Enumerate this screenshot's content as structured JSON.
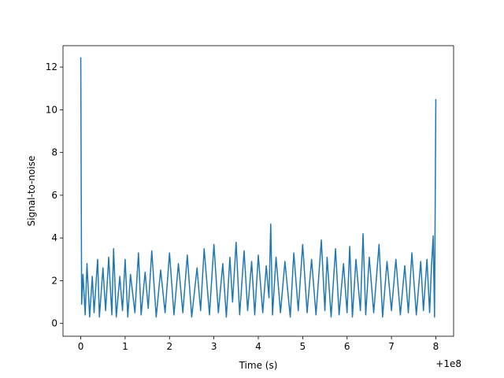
{
  "chart_data": {
    "type": "line",
    "title": "",
    "xlabel": "Time (s)",
    "ylabel": "Signal-to-noise",
    "x_offset_label": "+1e8",
    "xlim": [
      -0.4,
      8.4
    ],
    "ylim": [
      -0.6,
      13.0
    ],
    "x_ticks": [
      0,
      1,
      2,
      3,
      4,
      5,
      6,
      7,
      8
    ],
    "x_tick_labels": [
      "0",
      "1",
      "2",
      "3",
      "4",
      "5",
      "6",
      "7",
      "8"
    ],
    "y_ticks": [
      0,
      2,
      4,
      6,
      8,
      10,
      12
    ],
    "y_tick_labels": [
      "0",
      "2",
      "4",
      "6",
      "8",
      "10",
      "12"
    ],
    "grid": false,
    "line_color": "#1f77b4",
    "series": [
      {
        "x": [
          0.0,
          0.02,
          0.05,
          0.1,
          0.14,
          0.2,
          0.26,
          0.3,
          0.38,
          0.42,
          0.5,
          0.56,
          0.63,
          0.7,
          0.74,
          0.8,
          0.88,
          0.94,
          1.0,
          1.06,
          1.12,
          1.22,
          1.3,
          1.36,
          1.45,
          1.52,
          1.6,
          1.7,
          1.8,
          1.9,
          2.0,
          2.1,
          2.2,
          2.3,
          2.4,
          2.5,
          2.62,
          2.7,
          2.78,
          2.9,
          3.0,
          3.1,
          3.2,
          3.28,
          3.36,
          3.42,
          3.5,
          3.58,
          3.68,
          3.76,
          3.85,
          3.92,
          4.0,
          4.1,
          4.18,
          4.24,
          4.28,
          4.32,
          4.4,
          4.5,
          4.6,
          4.72,
          4.8,
          4.9,
          5.0,
          5.1,
          5.2,
          5.3,
          5.42,
          5.5,
          5.55,
          5.64,
          5.74,
          5.82,
          5.92,
          6.0,
          6.06,
          6.12,
          6.2,
          6.3,
          6.36,
          6.42,
          6.5,
          6.6,
          6.72,
          6.8,
          6.9,
          7.0,
          7.1,
          7.2,
          7.3,
          7.38,
          7.46,
          7.56,
          7.66,
          7.72,
          7.8,
          7.86,
          7.9,
          7.94,
          7.97,
          8.0
        ],
        "y": [
          12.45,
          0.9,
          2.3,
          0.4,
          2.8,
          0.3,
          2.2,
          0.5,
          3.0,
          0.3,
          2.6,
          0.6,
          3.1,
          0.4,
          3.5,
          0.3,
          2.2,
          0.6,
          3.0,
          0.3,
          2.3,
          0.5,
          3.3,
          0.4,
          2.4,
          0.7,
          3.4,
          0.3,
          2.5,
          0.5,
          3.3,
          0.4,
          2.8,
          0.5,
          3.2,
          0.3,
          2.6,
          0.6,
          3.5,
          0.4,
          3.7,
          0.5,
          2.8,
          0.3,
          3.1,
          1.0,
          3.8,
          0.4,
          3.4,
          0.6,
          2.9,
          0.4,
          3.2,
          0.5,
          2.7,
          1.2,
          4.65,
          0.4,
          3.1,
          0.5,
          2.9,
          0.3,
          3.3,
          0.6,
          3.7,
          0.5,
          3.0,
          0.4,
          3.9,
          0.6,
          3.1,
          0.3,
          3.5,
          0.4,
          2.8,
          0.5,
          3.6,
          0.3,
          3.0,
          0.6,
          4.2,
          0.4,
          3.1,
          0.5,
          3.7,
          0.3,
          2.9,
          0.6,
          3.0,
          0.4,
          2.7,
          0.5,
          3.3,
          0.4,
          2.9,
          0.6,
          3.0,
          0.5,
          2.6,
          4.1,
          0.3,
          10.5
        ]
      }
    ]
  }
}
